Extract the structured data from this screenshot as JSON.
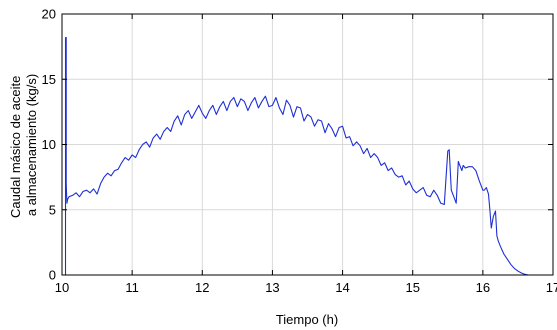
{
  "chart_data": {
    "type": "line",
    "xlabel": "Tiempo (h)",
    "ylabel_lines": [
      "Caudal másico de aceite",
      "a almacenamiento (kg/s)"
    ],
    "xlim": [
      10,
      17
    ],
    "ylim": [
      0,
      20
    ],
    "xticks": [
      10,
      11,
      12,
      13,
      14,
      15,
      16,
      17
    ],
    "yticks": [
      0,
      5,
      10,
      15,
      20
    ],
    "grid": true,
    "colors": {
      "series": "#1f2fd6",
      "grid": "#d9d9d9",
      "axis": "#000000"
    },
    "series": [
      {
        "x": [
          10.0,
          10.05,
          10.05,
          10.06,
          10.06,
          10.07,
          10.08,
          10.1,
          10.15,
          10.2,
          10.25,
          10.3,
          10.35,
          10.4,
          10.45,
          10.5,
          10.55,
          10.6,
          10.65,
          10.7,
          10.75,
          10.8,
          10.85,
          10.9,
          10.95,
          11.0,
          11.05,
          11.1,
          11.15,
          11.2,
          11.25,
          11.3,
          11.35,
          11.4,
          11.45,
          11.5,
          11.55,
          11.6,
          11.65,
          11.7,
          11.75,
          11.8,
          11.85,
          11.9,
          11.95,
          12.0,
          12.05,
          12.1,
          12.15,
          12.2,
          12.25,
          12.3,
          12.35,
          12.4,
          12.45,
          12.5,
          12.55,
          12.6,
          12.65,
          12.7,
          12.75,
          12.8,
          12.85,
          12.9,
          12.95,
          13.0,
          13.05,
          13.1,
          13.15,
          13.2,
          13.25,
          13.3,
          13.35,
          13.4,
          13.45,
          13.5,
          13.55,
          13.6,
          13.65,
          13.7,
          13.75,
          13.8,
          13.85,
          13.9,
          13.95,
          14.0,
          14.05,
          14.1,
          14.15,
          14.2,
          14.25,
          14.3,
          14.35,
          14.4,
          14.45,
          14.5,
          14.55,
          14.6,
          14.65,
          14.7,
          14.75,
          14.8,
          14.85,
          14.9,
          14.95,
          15.0,
          15.05,
          15.1,
          15.15,
          15.2,
          15.25,
          15.3,
          15.35,
          15.4,
          15.45,
          15.5,
          15.52,
          15.55,
          15.6,
          15.62,
          15.65,
          15.7,
          15.72,
          15.75,
          15.8,
          15.85,
          15.9,
          15.95,
          16.0,
          16.02,
          16.05,
          16.08,
          16.1,
          16.12,
          16.15,
          16.18,
          16.2,
          16.22,
          16.25,
          16.3,
          16.35,
          16.4,
          16.45,
          16.5,
          16.55,
          16.6,
          16.65,
          16.7,
          16.8,
          17.0
        ],
        "y": [
          0,
          0,
          18.2,
          18.2,
          7.0,
          5.5,
          5.8,
          6.0,
          6.1,
          6.3,
          6.0,
          6.4,
          6.5,
          6.3,
          6.6,
          6.2,
          7.0,
          7.5,
          7.8,
          7.6,
          8.0,
          8.1,
          8.6,
          9.0,
          8.8,
          9.2,
          9.0,
          9.6,
          10.0,
          10.2,
          9.8,
          10.5,
          10.8,
          10.4,
          11.0,
          11.3,
          11.0,
          11.8,
          12.2,
          11.5,
          12.3,
          12.6,
          12.0,
          12.5,
          13.0,
          12.4,
          12.0,
          12.6,
          13.0,
          12.3,
          12.9,
          13.3,
          12.6,
          13.3,
          13.6,
          12.9,
          13.5,
          13.3,
          12.6,
          13.2,
          13.6,
          12.8,
          13.3,
          13.7,
          12.9,
          13.0,
          13.6,
          12.8,
          12.3,
          13.4,
          13.0,
          12.1,
          12.9,
          12.8,
          11.8,
          12.3,
          12.1,
          11.4,
          11.9,
          11.8,
          10.9,
          11.6,
          11.2,
          10.6,
          11.3,
          11.4,
          10.5,
          10.6,
          9.9,
          10.2,
          9.9,
          9.3,
          9.7,
          9.0,
          9.3,
          9.0,
          8.4,
          8.6,
          8.0,
          8.2,
          7.7,
          7.5,
          7.6,
          6.9,
          7.2,
          6.6,
          6.3,
          6.5,
          6.7,
          6.1,
          6.0,
          6.5,
          6.1,
          5.5,
          5.4,
          9.5,
          9.6,
          6.5,
          5.8,
          5.5,
          8.7,
          8.0,
          8.4,
          8.2,
          8.3,
          8.3,
          8.0,
          7.2,
          6.5,
          6.5,
          6.7,
          6.2,
          5.0,
          3.6,
          4.5,
          4.9,
          3.0,
          2.6,
          2.2,
          1.6,
          1.2,
          0.8,
          0.5,
          0.3,
          0.15,
          0.05,
          0.0,
          0.0,
          0.0,
          0.0
        ]
      }
    ]
  }
}
